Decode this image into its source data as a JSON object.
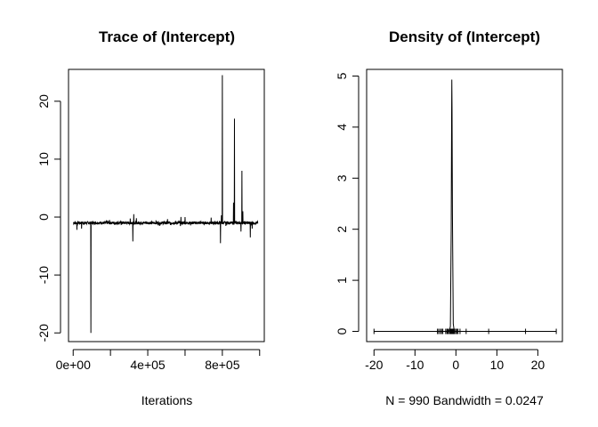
{
  "chart_data": [
    {
      "type": "line",
      "title": "Trace of (Intercept)",
      "xlabel": "Iterations",
      "ylabel": "",
      "xlim": [
        -25000,
        1025000
      ],
      "ylim": [
        -21.5,
        25.5
      ],
      "x_ticks": [
        0,
        400000,
        800000
      ],
      "x_tick_labels": [
        "0e+00",
        "4e+05",
        "8e+05"
      ],
      "x_tick_marks": [
        0,
        200000,
        400000,
        600000,
        800000,
        1000000
      ],
      "y_ticks": [
        -20,
        -10,
        0,
        10,
        20
      ],
      "y_tick_labels": [
        "-20",
        "-10",
        "0",
        "10",
        "20"
      ],
      "baseline": -1,
      "n_iterations": 990,
      "x_start": 1000,
      "x_end": 990000,
      "spikes": [
        {
          "x": 20000,
          "y": -2.2
        },
        {
          "x": 45000,
          "y": -2.0
        },
        {
          "x": 95000,
          "y": -20.0
        },
        {
          "x": 320000,
          "y": -4.2
        },
        {
          "x": 325000,
          "y": 0.5
        },
        {
          "x": 600000,
          "y": 0.0
        },
        {
          "x": 790000,
          "y": -4.5
        },
        {
          "x": 795000,
          "y": 0.3
        },
        {
          "x": 800000,
          "y": 24.5
        },
        {
          "x": 860000,
          "y": 2.5
        },
        {
          "x": 865000,
          "y": 17.0
        },
        {
          "x": 900000,
          "y": -2.5
        },
        {
          "x": 905000,
          "y": 8.0
        },
        {
          "x": 910000,
          "y": 1.0
        },
        {
          "x": 950000,
          "y": -3.5
        },
        {
          "x": 960000,
          "y": -2.0
        }
      ]
    },
    {
      "type": "line",
      "title": "Density of (Intercept)",
      "xlabel": "N = 990   Bandwidth = 0.0247",
      "ylabel": "",
      "xlim": [
        -21.8,
        26.0
      ],
      "ylim": [
        -0.2,
        5.13
      ],
      "x_ticks": [
        -20,
        -10,
        0,
        10,
        20
      ],
      "x_tick_labels": [
        "-20",
        "-10",
        "0",
        "10",
        "20"
      ],
      "y_ticks": [
        0,
        1,
        2,
        3,
        4,
        5
      ],
      "y_tick_labels": [
        "0",
        "1",
        "2",
        "3",
        "4",
        "5"
      ],
      "x_range": [
        -20,
        24.5
      ],
      "peak": {
        "x": -1.0,
        "y": 4.93
      },
      "rug": [
        -20,
        -4.5,
        -4.2,
        -3.8,
        -3.5,
        -3.2,
        -2.5,
        -2.2,
        -2.0,
        -1.8,
        -1.5,
        -1.3,
        -1.2,
        -1.1,
        -1.0,
        -0.9,
        -0.8,
        -0.7,
        -0.6,
        -0.5,
        -0.3,
        0.0,
        0.3,
        0.5,
        1.0,
        2.5,
        8.0,
        17.0,
        24.5
      ]
    }
  ]
}
